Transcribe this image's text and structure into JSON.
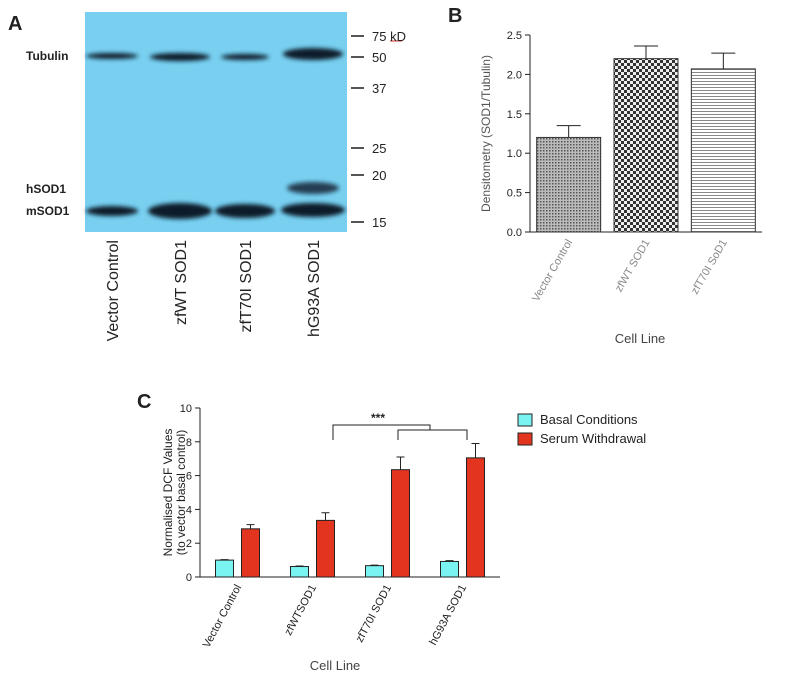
{
  "blot": {
    "panel_label": "A",
    "band_labels": [
      "Tubulin",
      "hSOD1",
      "mSOD1"
    ],
    "ladder": [
      "75 kD",
      "50",
      "37",
      "25",
      "20",
      "15"
    ],
    "lanes": [
      "Vector Control",
      "zfWT SOD1",
      "zfT70I SOD1",
      "hG93A SOD1"
    ]
  },
  "chart_data": [
    {
      "type": "bar",
      "panel_label": "B",
      "y_label": "Densitometry (SOD1/Tubulin)",
      "x_label": "Cell Line",
      "categories": [
        "Vector Control",
        "zfWT SOD1",
        "zfT70I SoD1"
      ],
      "values": [
        1.2,
        2.2,
        2.07
      ],
      "errors": [
        0.15,
        0.16,
        0.2
      ],
      "patterns": [
        "dots",
        "checker",
        "stripes"
      ],
      "ylim": [
        0,
        2.5
      ],
      "yticks": [
        {
          "value": 0,
          "label": "0.0"
        },
        0.5,
        {
          "value": 1,
          "label": "1.0"
        },
        1.5,
        {
          "value": 2,
          "label": "2.0"
        },
        2.5
      ]
    },
    {
      "type": "bar",
      "panel_label": "C",
      "y_label": [
        "Normalised DCF Values",
        "(to vector basal control)"
      ],
      "x_label": "Cell Line",
      "categories": [
        "Vector Control",
        "zfWTSOD1",
        "zfT70I SOD1",
        "hG93A SOD1"
      ],
      "series": [
        {
          "name": "Basal Conditions",
          "color": "#7af3f3",
          "values": [
            1.0,
            0.62,
            0.67,
            0.92
          ],
          "errors": [
            0.03,
            0.03,
            0.03,
            0.05
          ]
        },
        {
          "name": "Serum Withdrawal",
          "color": "#e2341f",
          "values": [
            2.85,
            3.35,
            6.35,
            7.05
          ],
          "errors": [
            0.25,
            0.45,
            0.75,
            0.85
          ]
        }
      ],
      "significance": "***",
      "ylim": [
        0,
        10
      ],
      "yticks": [
        0,
        2,
        4,
        6,
        8,
        10
      ]
    }
  ]
}
